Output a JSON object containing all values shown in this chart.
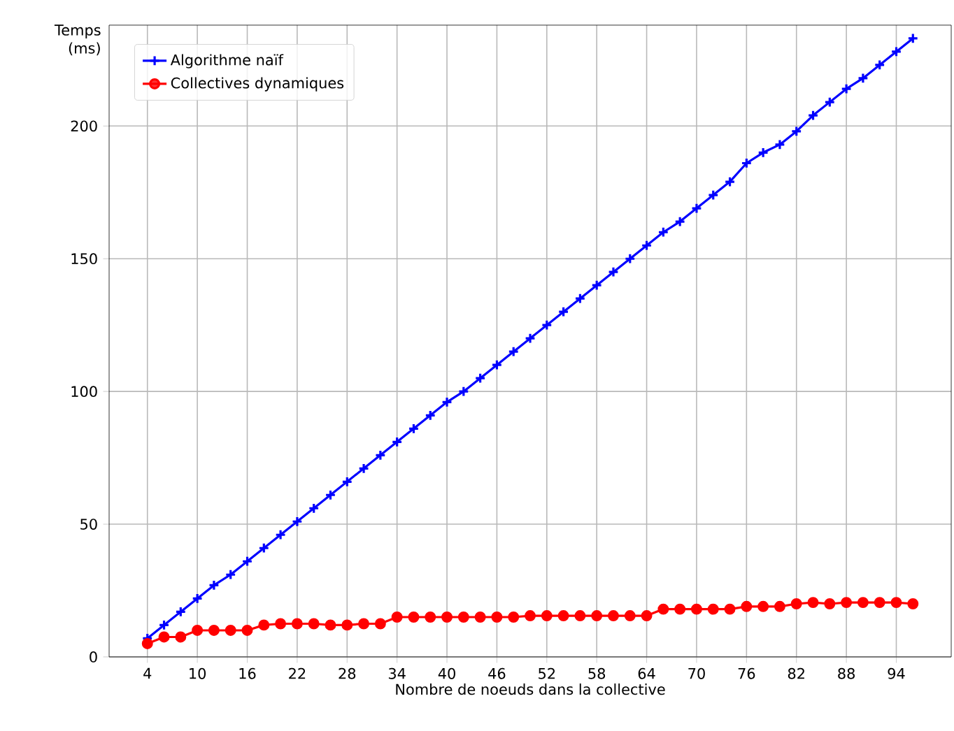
{
  "chart_data": {
    "type": "line",
    "xlabel": "Nombre de noeuds dans la collective",
    "ylabel": "Temps (ms)",
    "x": [
      4,
      6,
      8,
      10,
      12,
      14,
      16,
      18,
      20,
      22,
      24,
      26,
      28,
      30,
      32,
      34,
      36,
      38,
      40,
      42,
      44,
      46,
      48,
      50,
      52,
      54,
      56,
      58,
      60,
      62,
      64,
      66,
      68,
      70,
      72,
      74,
      76,
      78,
      80,
      82,
      84,
      86,
      88,
      90,
      92,
      94,
      96
    ],
    "series": [
      {
        "name": "Algorithme naïf",
        "color": "#0000ff",
        "marker": "cross",
        "values": [
          7,
          12,
          17,
          22,
          27,
          31,
          36,
          41,
          46,
          51,
          56,
          61,
          66,
          71,
          76,
          81,
          86,
          91,
          96,
          100,
          105,
          110,
          115,
          120,
          125,
          130,
          135,
          140,
          145,
          150,
          155,
          160,
          164,
          169,
          174,
          179,
          186,
          190,
          193,
          198,
          204,
          209,
          214,
          218,
          223,
          228,
          233
        ]
      },
      {
        "name": "Collectives dynamiques",
        "color": "#ff0000",
        "marker": "circle",
        "values": [
          5,
          7.5,
          7.5,
          10,
          10,
          10,
          10,
          12,
          12.5,
          12.5,
          12.5,
          12,
          12,
          12.5,
          12.5,
          15,
          15,
          15,
          15,
          15,
          15,
          15,
          15,
          15.5,
          15.5,
          15.5,
          15.5,
          15.5,
          15.5,
          15.5,
          15.5,
          18,
          18,
          18,
          18,
          18,
          19,
          19,
          19,
          20,
          20.5,
          20,
          20.5,
          20.5,
          20.5,
          20.5,
          20
        ]
      }
    ],
    "xlim": [
      -0.6,
      100.6
    ],
    "ylim": [
      0,
      238
    ],
    "xticks": [
      4,
      10,
      16,
      22,
      28,
      34,
      40,
      46,
      52,
      58,
      64,
      70,
      76,
      82,
      88,
      94
    ],
    "yticks": [
      0,
      50,
      100,
      150,
      200
    ],
    "grid": true,
    "legend": "top left"
  }
}
